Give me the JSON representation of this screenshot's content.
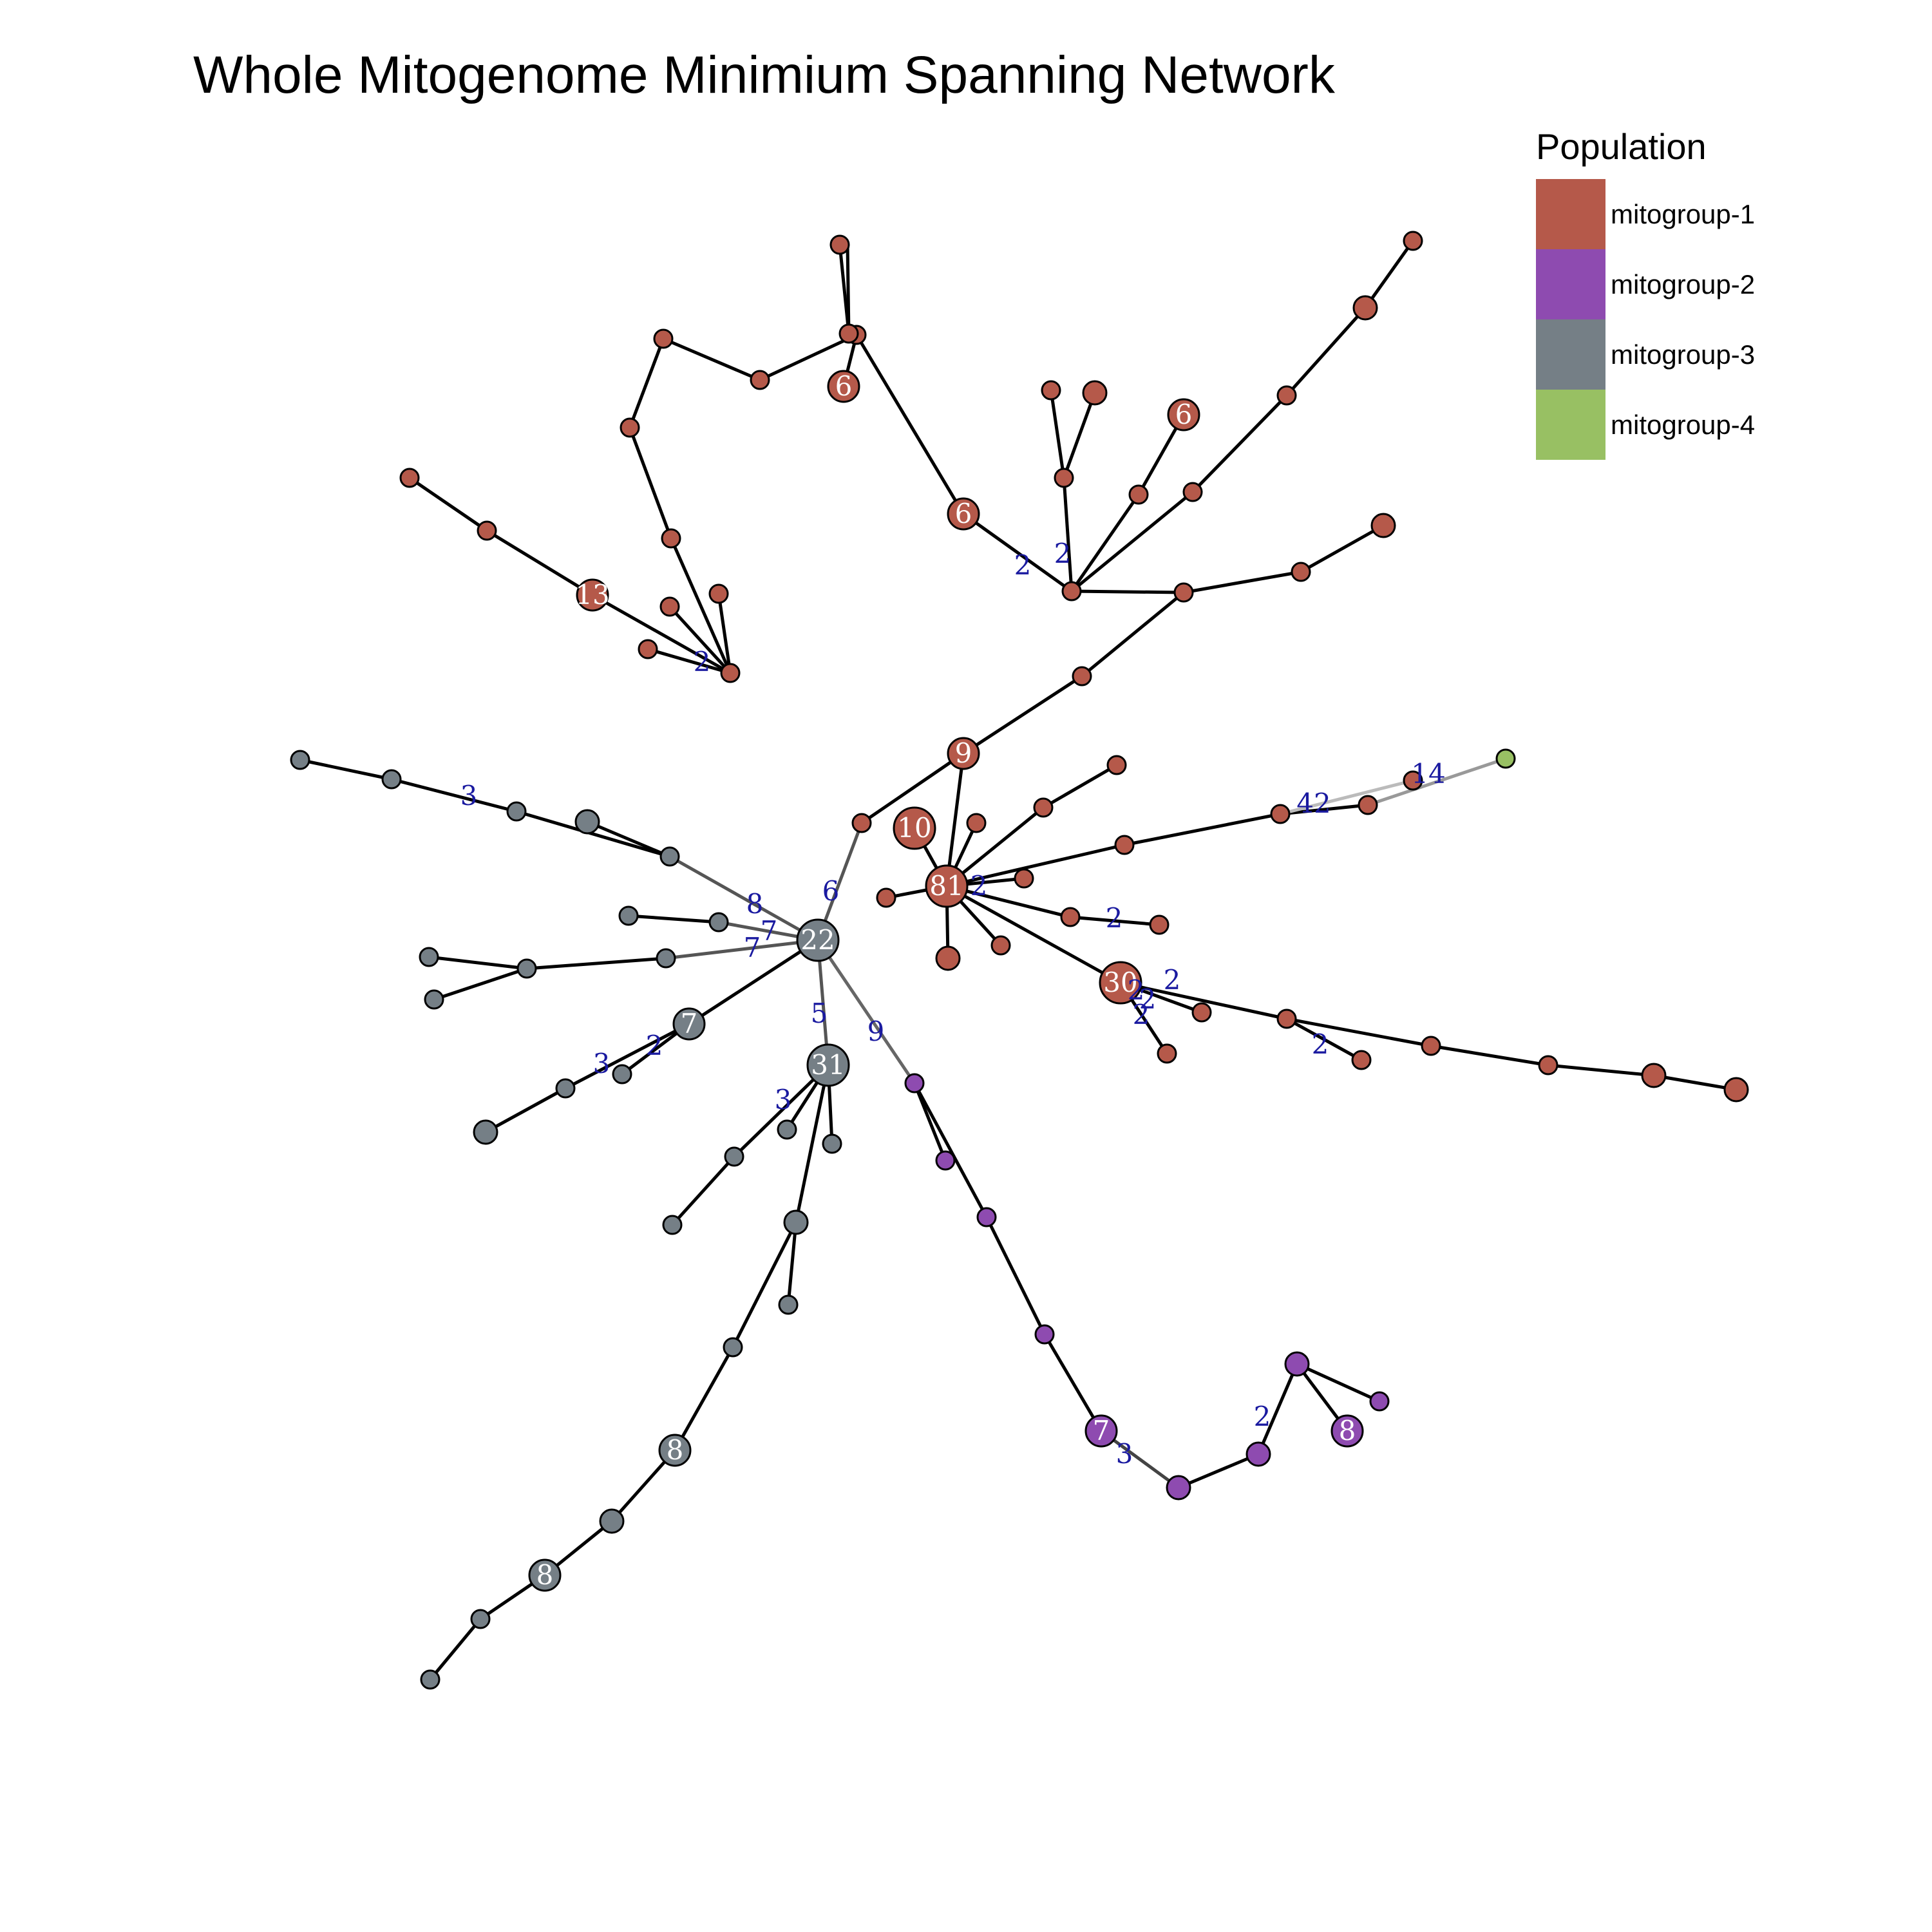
{
  "title": "Whole Mitogenome Minimium Spanning Network",
  "legend": {
    "title": "Population",
    "items": [
      {
        "label": "mitogroup-1",
        "color": "#B5594A"
      },
      {
        "label": "mitogroup-2",
        "color": "#8E4BB0"
      },
      {
        "label": "mitogroup-3",
        "color": "#757F86"
      },
      {
        "label": "mitogroup-4",
        "color": "#98C063"
      }
    ]
  },
  "nodes": [
    {
      "id": "n81",
      "pop": 1,
      "label": "81",
      "size": 3
    },
    {
      "id": "n30",
      "pop": 1,
      "label": "30",
      "size": 3
    },
    {
      "id": "n10",
      "pop": 1,
      "label": "10",
      "size": 3
    },
    {
      "id": "n9",
      "pop": 1,
      "label": "9",
      "size": 2
    },
    {
      "id": "n13",
      "pop": 1,
      "label": "13",
      "size": 2
    },
    {
      "id": "n6a",
      "pop": 1,
      "label": "6",
      "size": 2
    },
    {
      "id": "n6b",
      "pop": 1,
      "label": "6",
      "size": 2
    },
    {
      "id": "n6c",
      "pop": 1,
      "label": "6",
      "size": 2
    },
    {
      "id": "n22",
      "pop": 3,
      "label": "22",
      "size": 3
    },
    {
      "id": "n31",
      "pop": 3,
      "label": "31",
      "size": 3
    },
    {
      "id": "n7g",
      "pop": 3,
      "label": "7",
      "size": 2
    },
    {
      "id": "n8g1",
      "pop": 3,
      "label": "8",
      "size": 2
    },
    {
      "id": "n8g2",
      "pop": 3,
      "label": "8",
      "size": 2
    },
    {
      "id": "n7p",
      "pop": 2,
      "label": "7",
      "size": 2
    },
    {
      "id": "n8p",
      "pop": 2,
      "label": "8",
      "size": 2
    },
    {
      "id": "g4",
      "pop": 4,
      "label": "",
      "size": 0
    }
  ],
  "edge_labels": [
    "2",
    "2",
    "2",
    "2",
    "3",
    "8",
    "7",
    "7",
    "6",
    "5",
    "9",
    "3",
    "2",
    "3",
    "2",
    "2",
    "2",
    "2",
    "2",
    "2",
    "42",
    "14",
    "3",
    "2"
  ]
}
